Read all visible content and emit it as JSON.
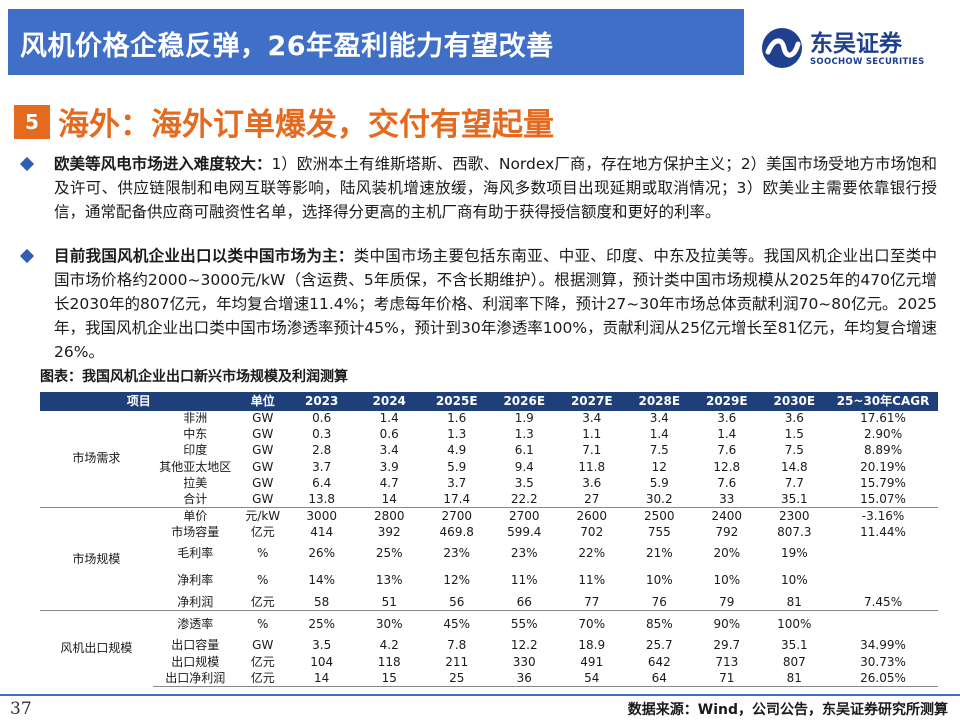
{
  "header": {
    "title": "风机价格企稳反弹，26年盈利能力有望改善",
    "logo_cn": "东吴证券",
    "logo_en": "SOOCHOW SECURITIES"
  },
  "section": {
    "number": "5",
    "title": "海外：海外订单爆发，交付有望起量"
  },
  "bullets": [
    {
      "lead": "欧美等风电市场进入难度较大：",
      "text": "1）欧洲本土有维斯塔斯、西歌、Nordex厂商，存在地方保护主义；2）美国市场受地方市场饱和及许可、供应链限制和电网互联等影响，陆风装机增速放缓，海风多数项目出现延期或取消情况；3）欧美业主需要依靠银行授信，通常配备供应商可融资性名单，选择得分更高的主机厂商有助于获得授信额度和更好的利率。"
    },
    {
      "lead": "目前我国风机企业出口以类中国市场为主：",
      "text": "类中国市场主要包括东南亚、中亚、印度、中东及拉美等。我国风机企业出口至类中国市场价格约2000~3000元/kW（含运费、5年质保，不含长期维护）。根据测算，预计类中国市场规模从2025年的470亿元增长2030年的807亿元，年均复合增速11.4%；考虑每年价格、利润率下降，预计27~30年市场总体贡献利润70~80亿元。2025年，我国风机企业出口类中国市场渗透率预计45%，预计到30年渗透率100%，贡献利润从25亿元增长至81亿元，年均复合增速26%。"
    }
  ],
  "table": {
    "caption": "图表：我国风机企业出口新兴市场规模及利润测算",
    "headers": [
      "项目",
      "",
      "单位",
      "2023",
      "2024",
      "2025E",
      "2026E",
      "2027E",
      "2028E",
      "2029E",
      "2030E",
      "25~30年CAGR"
    ],
    "groups": [
      {
        "name": "市场需求",
        "rows": [
          {
            "item": "非洲",
            "unit": "GW",
            "v": [
              "0.6",
              "1.4",
              "1.6",
              "1.9",
              "3.4",
              "3.4",
              "3.6",
              "3.6"
            ],
            "cagr": "17.61%"
          },
          {
            "item": "中东",
            "unit": "GW",
            "v": [
              "0.3",
              "0.6",
              "1.3",
              "1.3",
              "1.1",
              "1.4",
              "1.4",
              "1.5"
            ],
            "cagr": "2.90%"
          },
          {
            "item": "印度",
            "unit": "GW",
            "v": [
              "2.8",
              "3.4",
              "4.9",
              "6.1",
              "7.1",
              "7.5",
              "7.6",
              "7.5"
            ],
            "cagr": "8.89%"
          },
          {
            "item": "其他亚太地区",
            "unit": "GW",
            "v": [
              "3.7",
              "3.9",
              "5.9",
              "9.4",
              "11.8",
              "12",
              "12.8",
              "14.8"
            ],
            "cagr": "20.19%"
          },
          {
            "item": "拉美",
            "unit": "GW",
            "v": [
              "6.4",
              "4.7",
              "3.7",
              "3.5",
              "3.6",
              "5.9",
              "7.6",
              "7.7"
            ],
            "cagr": "15.79%"
          },
          {
            "item": "合计",
            "unit": "GW",
            "v": [
              "13.8",
              "14",
              "17.4",
              "22.2",
              "27",
              "30.2",
              "33",
              "35.1"
            ],
            "cagr": "15.07%"
          }
        ]
      },
      {
        "name": "市场规模",
        "rows": [
          {
            "item": "单价",
            "unit": "元/kW",
            "v": [
              "3000",
              "2800",
              "2700",
              "2700",
              "2600",
              "2500",
              "2400",
              "2300"
            ],
            "cagr": "-3.16%"
          },
          {
            "item": "市场容量",
            "unit": "亿元",
            "v": [
              "414",
              "392",
              "469.8",
              "599.4",
              "702",
              "755",
              "792",
              "807.3"
            ],
            "cagr": "11.44%"
          },
          {
            "item": "毛利率",
            "unit": "%",
            "v": [
              "26%",
              "25%",
              "23%",
              "23%",
              "22%",
              "21%",
              "20%",
              "19%"
            ],
            "cagr": ""
          },
          {
            "item": "净利率",
            "unit": "%",
            "v": [
              "14%",
              "13%",
              "12%",
              "11%",
              "11%",
              "10%",
              "10%",
              "10%"
            ],
            "cagr": ""
          },
          {
            "item": "净利润",
            "unit": "亿元",
            "v": [
              "58",
              "51",
              "56",
              "66",
              "77",
              "76",
              "79",
              "81"
            ],
            "cagr": "7.45%"
          }
        ]
      },
      {
        "name": "风机出口规模",
        "rows": [
          {
            "item": "渗透率",
            "unit": "%",
            "v": [
              "25%",
              "30%",
              "45%",
              "55%",
              "70%",
              "85%",
              "90%",
              "100%"
            ],
            "cagr": ""
          },
          {
            "item": "出口容量",
            "unit": "GW",
            "v": [
              "3.5",
              "4.2",
              "7.8",
              "12.2",
              "18.9",
              "25.7",
              "29.7",
              "35.1"
            ],
            "cagr": "34.99%"
          },
          {
            "item": "出口规模",
            "unit": "亿元",
            "v": [
              "104",
              "118",
              "211",
              "330",
              "491",
              "642",
              "713",
              "807"
            ],
            "cagr": "30.73%"
          },
          {
            "item": "出口净利润",
            "unit": "亿元",
            "v": [
              "14",
              "15",
              "25",
              "36",
              "54",
              "64",
              "71",
              "81"
            ],
            "cagr": "26.05%"
          }
        ]
      }
    ]
  },
  "footer": {
    "page": "37",
    "source": "数据来源：Wind，公司公告，东吴证券研究所测算"
  },
  "colors": {
    "header_blue": "#3f6fc6",
    "accent_orange": "#e46a1f",
    "table_header": "#1f3f7a",
    "bullet_diamond": "#2f5fb3"
  }
}
